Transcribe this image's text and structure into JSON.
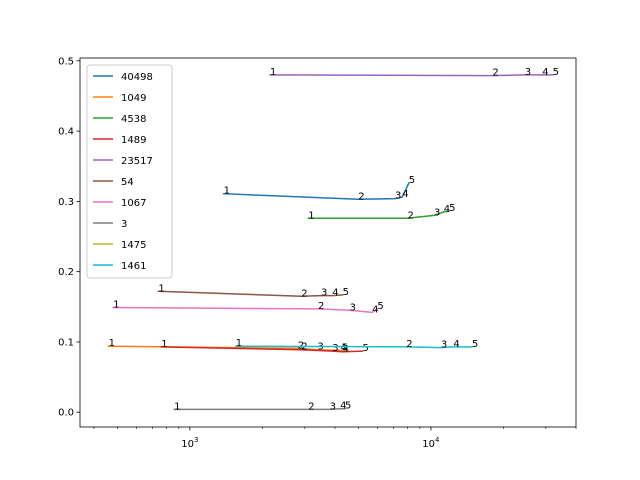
{
  "chart_data": {
    "type": "line",
    "title": "",
    "xlabel": "",
    "ylabel": "",
    "xscale": "log",
    "xlim": [
      350,
      40000
    ],
    "ylim": [
      -0.021,
      0.504
    ],
    "x_ticks": [
      {
        "value": 1000,
        "base": "10",
        "exp": "3"
      },
      {
        "value": 10000,
        "base": "10",
        "exp": "4"
      }
    ],
    "y_ticks": [
      {
        "value": 0.0,
        "label": "0.0"
      },
      {
        "value": 0.1,
        "label": "0.1"
      },
      {
        "value": 0.2,
        "label": "0.2"
      },
      {
        "value": 0.3,
        "label": "0.3"
      },
      {
        "value": 0.4,
        "label": "0.4"
      },
      {
        "value": 0.5,
        "label": "0.5"
      }
    ],
    "grid": false,
    "legend_position": "upper-left",
    "series": [
      {
        "name": "40498",
        "color": "#1f77b4",
        "labels": [
          "1",
          "2",
          "3",
          "4",
          "5"
        ],
        "x": [
          1380,
          5000,
          7100,
          7600,
          8100
        ],
        "y": [
          0.311,
          0.303,
          0.304,
          0.306,
          0.326
        ]
      },
      {
        "name": "1049",
        "color": "#ff7f0e",
        "labels": [
          "1",
          "2",
          "3",
          "4",
          "5"
        ],
        "x": [
          460,
          2800,
          3380,
          4220,
          4260
        ],
        "y": [
          0.094,
          0.091,
          0.089,
          0.088,
          0.088
        ]
      },
      {
        "name": "4538",
        "color": "#2ca02c",
        "labels": [
          "1",
          "2",
          "3",
          "4",
          "5"
        ],
        "x": [
          3100,
          8000,
          10300,
          11300,
          11900
        ],
        "y": [
          0.276,
          0.276,
          0.28,
          0.285,
          0.286
        ]
      },
      {
        "name": "1489",
        "color": "#d62728",
        "labels": [
          "1",
          "2",
          "3",
          "4",
          "5"
        ],
        "x": [
          760,
          2900,
          3900,
          4300,
          5200
        ],
        "y": [
          0.093,
          0.089,
          0.087,
          0.086,
          0.087
        ]
      },
      {
        "name": "23517",
        "color": "#9467bd",
        "labels": [
          "1",
          "2",
          "3",
          "4",
          "5"
        ],
        "x": [
          2150,
          18000,
          24500,
          29000,
          32000
        ],
        "y": [
          0.48,
          0.479,
          0.48,
          0.48,
          0.48
        ]
      },
      {
        "name": "54",
        "color": "#8c564b",
        "labels": [
          "1",
          "2",
          "3",
          "4",
          "5"
        ],
        "x": [
          740,
          2900,
          3500,
          3900,
          4300
        ],
        "y": [
          0.172,
          0.165,
          0.166,
          0.166,
          0.167
        ]
      },
      {
        "name": "1067",
        "color": "#e377c2",
        "labels": [
          "1",
          "2",
          "3",
          "4",
          "5"
        ],
        "x": [
          480,
          3400,
          4600,
          5700,
          6000
        ],
        "y": [
          0.149,
          0.147,
          0.145,
          0.142,
          0.147
        ]
      },
      {
        "name": "3",
        "color": "#7f7f7f",
        "labels": [
          "1",
          "2",
          "3",
          "4",
          "5"
        ],
        "x": [
          860,
          3100,
          3800,
          4200,
          4400
        ],
        "y": [
          0.004,
          0.004,
          0.004,
          0.005,
          0.005
        ]
      },
      {
        "name": "1475",
        "color": "#bcbd22",
        "labels": [],
        "x": [],
        "y": []
      },
      {
        "name": "1461",
        "color": "#17becf",
        "labels": [
          "1",
          "2",
          "3",
          "4",
          "5"
        ],
        "x": [
          1550,
          7900,
          11000,
          12400,
          14800
        ],
        "y": [
          0.094,
          0.093,
          0.092,
          0.093,
          0.093
        ]
      }
    ]
  }
}
